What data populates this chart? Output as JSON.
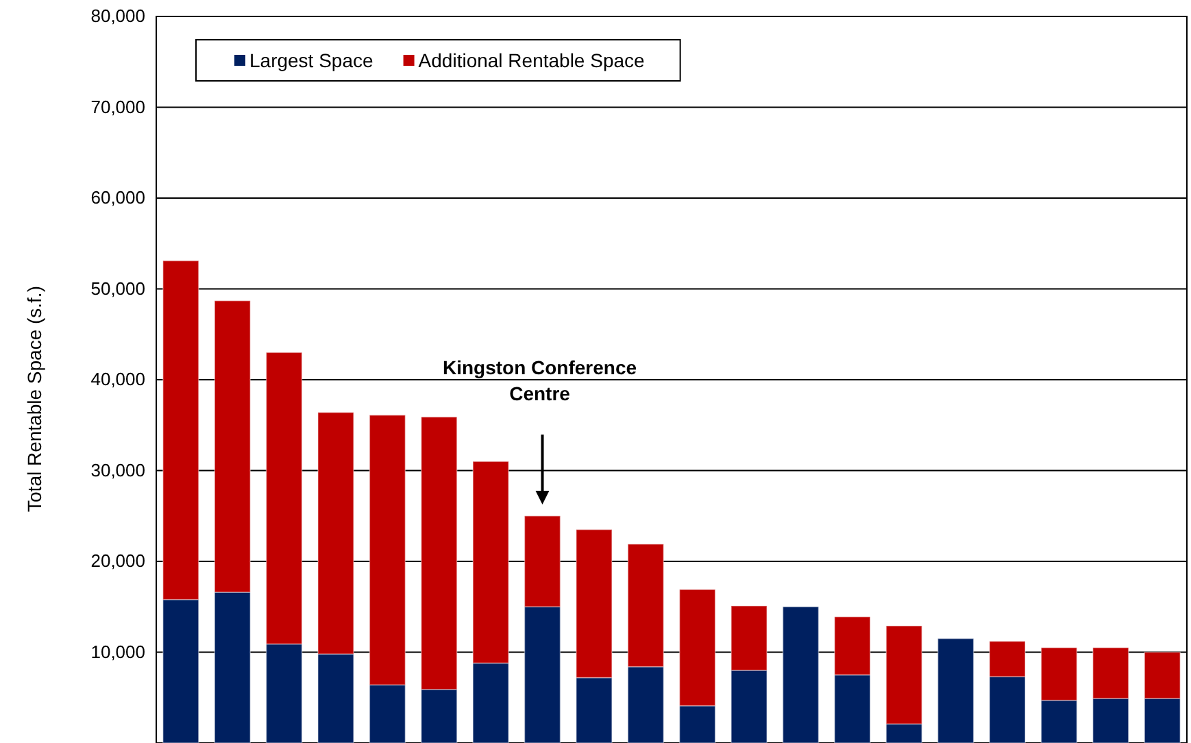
{
  "chart_data": {
    "type": "bar",
    "stacked": true,
    "ylabel": "Total Rentable Space (s.f.)",
    "categories": [
      null,
      null,
      null,
      null,
      null,
      null,
      null,
      null,
      null,
      null,
      null,
      null,
      null,
      null,
      null,
      null,
      null,
      null,
      null,
      null
    ],
    "series": [
      {
        "name": "Largest Space",
        "color": "#002060",
        "values": [
          15800,
          16600,
          10900,
          9800,
          6400,
          5900,
          8800,
          15000,
          7200,
          8400,
          4100,
          8000,
          15000,
          7500,
          2100,
          11500,
          7300,
          4700,
          4900,
          4900
        ]
      },
      {
        "name": "Additional Rentable Space",
        "color": "#c00000",
        "values": [
          37300,
          32100,
          32100,
          26600,
          29700,
          30000,
          22200,
          10000,
          16300,
          13500,
          12800,
          7100,
          0,
          6400,
          10800,
          0,
          3900,
          5800,
          5600,
          5100
        ]
      }
    ],
    "ylim": [
      0,
      80000
    ],
    "yticks": [
      {
        "value": 10000,
        "label": "10,000"
      },
      {
        "value": 20000,
        "label": "20,000"
      },
      {
        "value": 30000,
        "label": "30,000"
      },
      {
        "value": 40000,
        "label": "40,000"
      },
      {
        "value": 50000,
        "label": "50,000"
      },
      {
        "value": 60000,
        "label": "60,000"
      },
      {
        "value": 70000,
        "label": "70,000"
      },
      {
        "value": 80000,
        "label": "80,000"
      }
    ],
    "grid": "y",
    "legend": "top left",
    "tick_labels": "y",
    "annotations": [
      "Kingston Conference Centre"
    ]
  }
}
